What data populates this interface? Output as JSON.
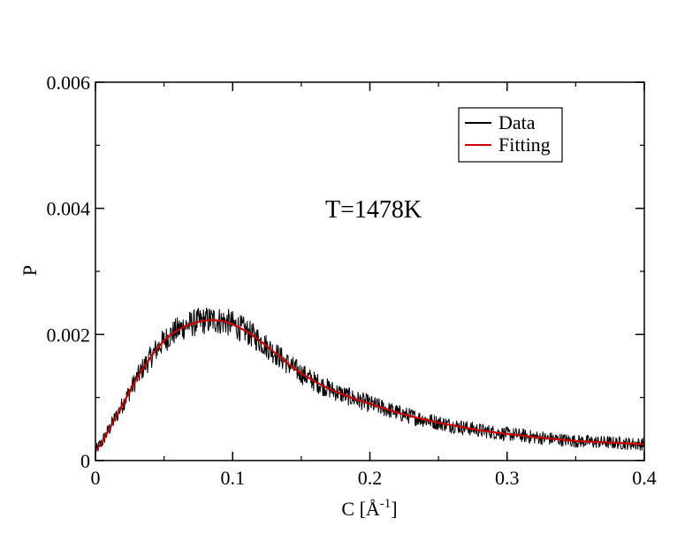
{
  "chart_data": {
    "type": "line",
    "xlabel_main": "C [Å",
    "xlabel_sup": "-1",
    "xlabel_close": "]",
    "ylabel": "P",
    "xlim": [
      0,
      0.4
    ],
    "ylim": [
      0,
      0.006
    ],
    "x_ticks": [
      0,
      0.1,
      0.2,
      0.3,
      0.4
    ],
    "x_tick_labels": [
      "0",
      "0.1",
      "0.2",
      "0.3",
      "0.4"
    ],
    "y_ticks": [
      0,
      0.002,
      0.004,
      0.006
    ],
    "y_tick_labels": [
      "0",
      "0.002",
      "0.004",
      "0.006"
    ],
    "grid": false,
    "legend_position": "top-right",
    "annotation": "T=1478K",
    "series": [
      {
        "name": "Data",
        "color": "#000000",
        "style": "noisy",
        "x": [
          0,
          0.005,
          0.01,
          0.015,
          0.02,
          0.025,
          0.03,
          0.035,
          0.04,
          0.045,
          0.05,
          0.055,
          0.06,
          0.065,
          0.07,
          0.075,
          0.08,
          0.085,
          0.09,
          0.095,
          0.1,
          0.11,
          0.12,
          0.13,
          0.14,
          0.15,
          0.16,
          0.17,
          0.18,
          0.19,
          0.2,
          0.21,
          0.22,
          0.23,
          0.24,
          0.25,
          0.26,
          0.27,
          0.28,
          0.29,
          0.3,
          0.31,
          0.32,
          0.33,
          0.34,
          0.35,
          0.36,
          0.37,
          0.38,
          0.39,
          0.4
        ],
        "y": [
          0.00015,
          0.0003,
          0.0005,
          0.0007,
          0.0009,
          0.0011,
          0.0013,
          0.00148,
          0.00163,
          0.00178,
          0.0019,
          0.002,
          0.00207,
          0.00213,
          0.00217,
          0.0022,
          0.00222,
          0.00223,
          0.00222,
          0.0022,
          0.00216,
          0.00205,
          0.0019,
          0.00172,
          0.00154,
          0.00138,
          0.00125,
          0.00114,
          0.00105,
          0.00097,
          0.0009,
          0.00083,
          0.00076,
          0.0007,
          0.00065,
          0.0006,
          0.00056,
          0.00052,
          0.00048,
          0.00045,
          0.00042,
          0.0004,
          0.00037,
          0.00035,
          0.00033,
          0.00031,
          0.0003,
          0.00029,
          0.00028,
          0.00027,
          0.00026
        ]
      },
      {
        "name": "Fitting",
        "color": "#cc0000",
        "style": "smooth",
        "x": [
          0,
          0.005,
          0.01,
          0.015,
          0.02,
          0.025,
          0.03,
          0.035,
          0.04,
          0.045,
          0.05,
          0.055,
          0.06,
          0.065,
          0.07,
          0.075,
          0.08,
          0.085,
          0.09,
          0.095,
          0.1,
          0.11,
          0.12,
          0.13,
          0.14,
          0.15,
          0.16,
          0.17,
          0.18,
          0.19,
          0.2,
          0.21,
          0.22,
          0.23,
          0.24,
          0.25,
          0.26,
          0.27,
          0.28,
          0.29,
          0.3,
          0.31,
          0.32,
          0.33,
          0.34,
          0.35,
          0.36,
          0.37,
          0.38,
          0.39,
          0.4
        ],
        "y": [
          0.00015,
          0.0003,
          0.0005,
          0.0007,
          0.0009,
          0.0011,
          0.0013,
          0.00148,
          0.00163,
          0.00178,
          0.0019,
          0.002,
          0.00207,
          0.00213,
          0.00217,
          0.0022,
          0.00222,
          0.00223,
          0.00222,
          0.0022,
          0.00216,
          0.00205,
          0.0019,
          0.00172,
          0.00154,
          0.00138,
          0.00125,
          0.00114,
          0.00105,
          0.00097,
          0.0009,
          0.00083,
          0.00076,
          0.0007,
          0.00065,
          0.0006,
          0.00056,
          0.00052,
          0.00048,
          0.00045,
          0.00042,
          0.0004,
          0.00037,
          0.00035,
          0.00033,
          0.00031,
          0.0003,
          0.00029,
          0.00028,
          0.00027,
          0.00026
        ]
      }
    ]
  }
}
